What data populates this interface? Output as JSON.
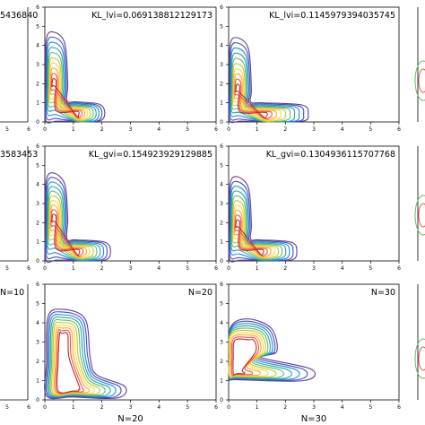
{
  "chart_data": [
    {
      "type": "contour",
      "panel": "row1-col2",
      "annotation": "KL_lvi=0.069138812129173",
      "xlim": [
        0,
        6
      ],
      "ylim": [
        0,
        6
      ],
      "xticks": [
        "0",
        "1",
        "2",
        "3",
        "4",
        "5",
        "6"
      ],
      "yticks": [
        "0",
        "1",
        "2",
        "3",
        "4",
        "5",
        "6"
      ],
      "xlabel": "",
      "shape": "bimodal",
      "modes": [
        {
          "x": 0.3,
          "y": 2.0
        },
        {
          "x": 1.1,
          "y": 0.45
        }
      ],
      "extent": {
        "xmax": 2.1,
        "ymax": 4.7
      },
      "levels": 10
    },
    {
      "type": "contour",
      "panel": "row1-col3",
      "annotation": "KL_lvi=0.1145979394035745",
      "xlim": [
        0,
        6
      ],
      "ylim": [
        0,
        6
      ],
      "xticks": [
        "0",
        "1",
        "2",
        "3",
        "4",
        "5",
        "6"
      ],
      "yticks": [
        "0",
        "1",
        "2",
        "3",
        "4",
        "5",
        "6"
      ],
      "xlabel": "",
      "shape": "bimodal",
      "modes": [
        {
          "x": 0.3,
          "y": 1.7
        },
        {
          "x": 1.2,
          "y": 0.4
        }
      ],
      "extent": {
        "xmax": 2.8,
        "ymax": 4.4
      },
      "levels": 10
    },
    {
      "type": "contour",
      "panel": "row2-col2",
      "annotation": "KL_gvi=0.154923929129885",
      "xlim": [
        0,
        6
      ],
      "ylim": [
        0,
        6
      ],
      "xticks": [
        "0",
        "1",
        "2",
        "3",
        "4",
        "5",
        "6"
      ],
      "yticks": [
        "0",
        "1",
        "2",
        "3",
        "4",
        "5",
        "6"
      ],
      "xlabel": "",
      "shape": "bimodal",
      "modes": [
        {
          "x": 0.3,
          "y": 2.2
        },
        {
          "x": 1.1,
          "y": 0.5
        }
      ],
      "extent": {
        "xmax": 2.3,
        "ymax": 4.6
      },
      "levels": 10
    },
    {
      "type": "contour",
      "panel": "row2-col3",
      "annotation": "KL_gvi=0.1304936115707768",
      "xlim": [
        0,
        6
      ],
      "ylim": [
        0,
        6
      ],
      "xticks": [
        "0",
        "1",
        "2",
        "3",
        "4",
        "5",
        "6"
      ],
      "yticks": [
        "0",
        "1",
        "2",
        "3",
        "4",
        "5",
        "6"
      ],
      "xlabel": "",
      "shape": "bimodal",
      "modes": [
        {
          "x": 0.3,
          "y": 1.9
        },
        {
          "x": 1.1,
          "y": 0.5
        }
      ],
      "extent": {
        "xmax": 2.4,
        "ymax": 4.4
      },
      "levels": 10
    },
    {
      "type": "contour",
      "panel": "row3-col2",
      "annotation": "N=20",
      "xlim": [
        0,
        6
      ],
      "ylim": [
        0,
        6
      ],
      "xticks": [
        "0",
        "1",
        "2",
        "3",
        "4",
        "5",
        "6"
      ],
      "yticks": [
        "0",
        "1",
        "2",
        "3",
        "4",
        "5",
        "6"
      ],
      "xlabel": "N=20",
      "shape": "diagonal",
      "modes": [
        {
          "x": 0.6,
          "y": 3.3
        },
        {
          "x": 1.0,
          "y": 0.5
        }
      ],
      "extent": {
        "xmax": 2.8,
        "ymax": 4.7
      },
      "levels": 10
    },
    {
      "type": "contour",
      "panel": "row3-col3",
      "annotation": "N=30",
      "xlim": [
        0,
        6
      ],
      "ylim": [
        0,
        6
      ],
      "xticks": [
        "0",
        "1",
        "2",
        "3",
        "4",
        "5",
        "6"
      ],
      "yticks": [
        "0",
        "1",
        "2",
        "3",
        "4",
        "5",
        "6"
      ],
      "xlabel": "N=30",
      "shape": "diagonal",
      "modes": [
        {
          "x": 0.7,
          "y": 3.0
        },
        {
          "x": 0.3,
          "y": 1.4
        }
      ],
      "extent": {
        "xmax": 2.9,
        "ymax": 4.2
      },
      "levels": 10
    }
  ],
  "left_partial": {
    "row1_annotation_fragment": "5436840",
    "row2_annotation_fragment": "3583453",
    "row3_annotation_fragment": "N=10",
    "tick_labels": [
      "5",
      "6"
    ]
  },
  "palette": [
    "#5e3c99",
    "#3f51b5",
    "#1e88e5",
    "#26a69a",
    "#66bb6a",
    "#c0ca33",
    "#fdd835",
    "#ffa726",
    "#ef5350",
    "#c62828"
  ]
}
